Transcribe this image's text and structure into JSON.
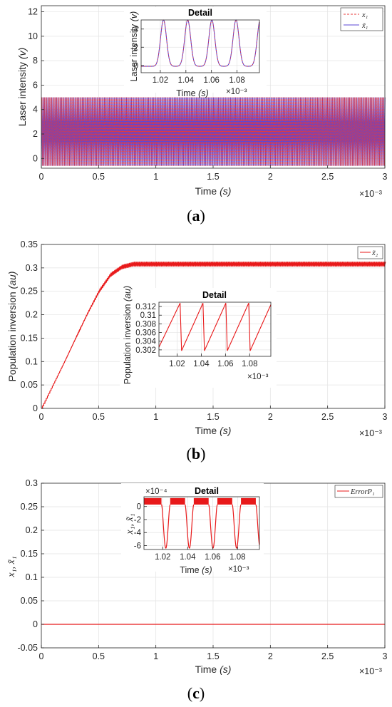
{
  "chart_data": [
    {
      "type": "line",
      "panel_label": "a",
      "ylabel": "Laser intensity",
      "ylabel_unit": "(v)",
      "xlabel": "Time",
      "xlabel_unit": "(s)",
      "x_exponent": "×10⁻³",
      "xlim": [
        0,
        3
      ],
      "ylim": [
        -0.8,
        12.5
      ],
      "xticks": [
        "0",
        "0.5",
        "1",
        "1.5",
        "2",
        "2.5",
        "3"
      ],
      "yticks": [
        "0",
        "2",
        "4",
        "6",
        "8",
        "10",
        "12"
      ],
      "grid": true,
      "legend_position": "top-right",
      "signal": {
        "min": -0.6,
        "max": 5.0,
        "period": 0.0214
      },
      "series": [
        {
          "name": "x₁",
          "style": "dashed",
          "color": "#e8393a"
        },
        {
          "name": "x̃₁",
          "style": "solid",
          "color": "#5b47d6"
        }
      ],
      "inset": {
        "title": "Detail",
        "ylabel": "Laser intensity",
        "ylabel_unit": "(v)",
        "xlabel": "Time",
        "xlabel_unit": "(s)",
        "x_exponent": "×10⁻³",
        "xlim": [
          1.005,
          1.0975
        ],
        "ylim": [
          -0.8,
          5.0
        ],
        "xticks": [
          "1.02",
          "1.04",
          "1.06",
          "1.08"
        ],
        "yticks": [
          "0",
          "2",
          "4"
        ],
        "pulse_peaks": [
          1.0225,
          1.0414,
          1.0603,
          1.0792,
          1.0981
        ]
      }
    },
    {
      "type": "line",
      "panel_label": "b",
      "ylabel": "Population inversion",
      "ylabel_unit": "(au)",
      "xlabel": "Time",
      "xlabel_unit": "(s)",
      "x_exponent": "×10⁻³",
      "xlim": [
        0,
        3
      ],
      "ylim": [
        0,
        0.35
      ],
      "xticks": [
        "0",
        "0.5",
        "1",
        "1.5",
        "2",
        "2.5",
        "3"
      ],
      "yticks": [
        "0",
        "0.05",
        "0.1",
        "0.15",
        "0.2",
        "0.25",
        "0.3",
        "0.35"
      ],
      "grid": true,
      "legend_position": "top-right",
      "series": [
        {
          "name": "x̃₂",
          "style": "solid",
          "color": "#e8191a"
        }
      ],
      "curve": {
        "x": [
          0,
          0.1,
          0.2,
          0.3,
          0.4,
          0.5,
          0.6,
          0.7,
          0.8,
          3.0
        ],
        "y": [
          0,
          0.05,
          0.1,
          0.152,
          0.203,
          0.25,
          0.285,
          0.302,
          0.308,
          0.308
        ],
        "ripple": 0.005
      },
      "inset": {
        "title": "Detail",
        "ylabel": "Population inversion",
        "ylabel_unit": "(au)",
        "xlabel": "",
        "x_exponent": "×10⁻³",
        "xlim": [
          1.005,
          1.0975
        ],
        "ylim": [
          0.3005,
          0.313
        ],
        "xticks": [
          "1.02",
          "1.04",
          "1.06",
          "1.08"
        ],
        "yticks": [
          "0.302",
          "0.304",
          "0.306",
          "0.308",
          "0.31",
          "0.312"
        ],
        "sawtooth": {
          "min": 0.3018,
          "max": 0.3128,
          "drops": [
            1.0225,
            1.0414,
            1.0603,
            1.0792,
            1.0981
          ]
        }
      }
    },
    {
      "type": "line",
      "panel_label": "c",
      "ylabel": "x₁, x̃₁",
      "xlabel": "Time",
      "xlabel_unit": "(s)",
      "x_exponent": "×10⁻³",
      "xlim": [
        0,
        3
      ],
      "ylim": [
        -0.05,
        0.3
      ],
      "xticks": [
        "0",
        "0.5",
        "1",
        "1.5",
        "2",
        "2.5",
        "3"
      ],
      "yticks": [
        "-0.05",
        "0",
        "0.05",
        "0.1",
        "0.15",
        "0.2",
        "0.25",
        "0.3"
      ],
      "grid": true,
      "legend_position": "top-right",
      "series": [
        {
          "name": "ErrorP₁",
          "style": "solid",
          "color": "#e8191a"
        }
      ],
      "value": 0,
      "inset": {
        "title": "Detail",
        "ylabel": "x₁, x̃₁",
        "xlabel": "Time",
        "xlabel_unit": "(s)",
        "x_exponent": "×10⁻³",
        "y_exponent": "×10⁻⁴",
        "xlim": [
          1.005,
          1.0975
        ],
        "ylim": [
          -6.6,
          1.5
        ],
        "xticks": [
          "1.02",
          "1.04",
          "1.06",
          "1.08"
        ],
        "yticks": [
          "0",
          "-2",
          "-4",
          "-6"
        ],
        "band": [
          0.3,
          1.3
        ],
        "dips": {
          "min": -6.4,
          "at": [
            1.0225,
            1.0414,
            1.0603,
            1.0792,
            1.0981
          ]
        }
      }
    }
  ]
}
